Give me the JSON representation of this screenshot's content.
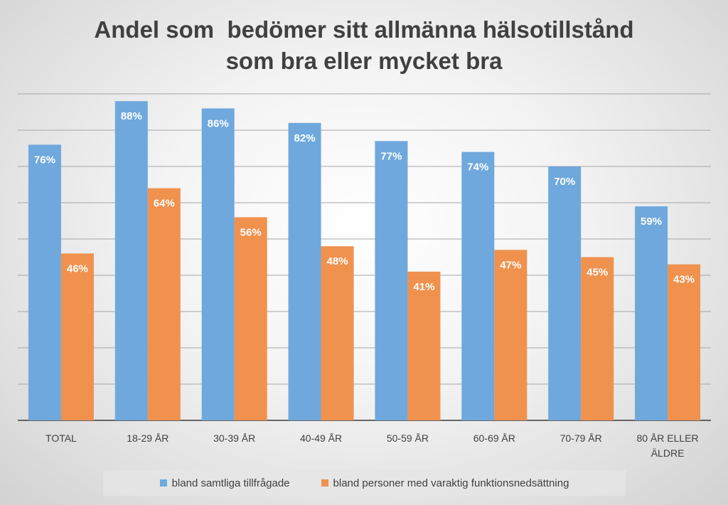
{
  "chart_data": {
    "type": "bar",
    "title_lines": [
      "Andel som  bedömer sitt allmänna hälsotillstånd",
      "som bra eller mycket bra"
    ],
    "categories": [
      "TOTAL",
      "18-29 ÅR",
      "30-39 ÅR",
      "40-49 ÅR",
      "50-59 ÅR",
      "60-69 ÅR",
      "70-79 ÅR",
      "80 ÅR ELLER ÄLDRE"
    ],
    "category_lines": [
      [
        "TOTAL"
      ],
      [
        "18-29 ÅR"
      ],
      [
        "30-39 ÅR"
      ],
      [
        "40-49 ÅR"
      ],
      [
        "50-59 ÅR"
      ],
      [
        "60-69 ÅR"
      ],
      [
        "70-79 ÅR"
      ],
      [
        "80 ÅR ELLER",
        "ÄLDRE"
      ]
    ],
    "series": [
      {
        "name": "bland samtliga tillfrågade",
        "color": "#6fa8dc",
        "values": [
          76,
          88,
          86,
          82,
          77,
          74,
          70,
          59
        ],
        "labels": [
          "76%",
          "88%",
          "86%",
          "82%",
          "77%",
          "74%",
          "70%",
          "59%"
        ]
      },
      {
        "name": "bland personer med varaktig funktionsnedsättning",
        "color": "#f0914e",
        "values": [
          46,
          64,
          56,
          48,
          41,
          47,
          45,
          43
        ],
        "labels": [
          "46%",
          "64%",
          "56%",
          "48%",
          "41%",
          "47%",
          "45%",
          "43%"
        ]
      }
    ],
    "ylim": [
      0,
      90
    ],
    "gridline_step": 10,
    "grid": true,
    "legend_position": "bottom"
  }
}
